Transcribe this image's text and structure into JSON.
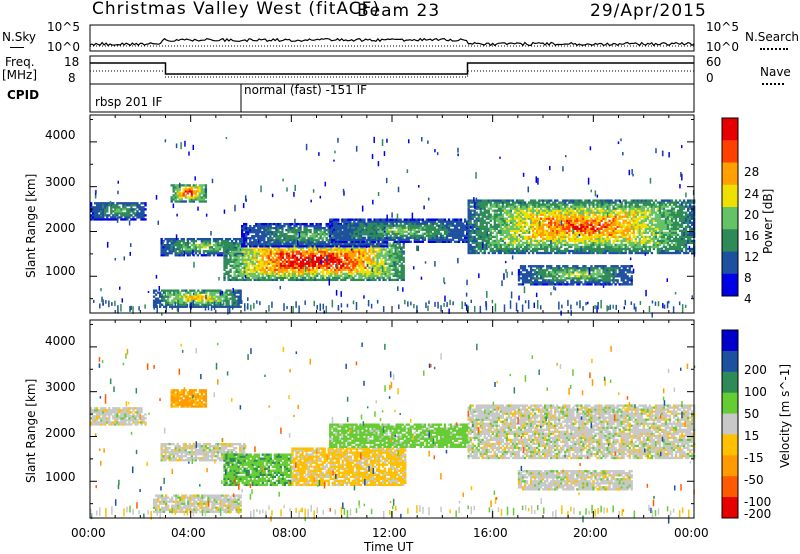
{
  "header": {
    "station": "Christmas Valley West (fitACF)",
    "beam": "Beam 23",
    "date": "29/Apr/2015"
  },
  "noise_panel": {
    "left_label": "N.Sky",
    "right_label": "N.Search",
    "left_ticks": [
      "10^5",
      "10^0"
    ],
    "right_ticks": [
      "10^5",
      "10^0"
    ]
  },
  "freq_panel": {
    "left_label_1": "Freq.",
    "left_label_2": "[MHz]",
    "right_label": "Nave",
    "left_ticks": [
      "18",
      "8"
    ],
    "right_ticks": [
      "60",
      "0"
    ]
  },
  "cpid_panel": {
    "label": "CPID",
    "segments": [
      {
        "start_hour": 0,
        "text": "rbsp 201 IF"
      },
      {
        "start_hour": 6,
        "text": "normal (fast) -151 IF"
      }
    ]
  },
  "x_axis": {
    "label": "Time UT",
    "ticks": [
      "00:00",
      "04:00",
      "08:00",
      "12:00",
      "16:00",
      "20:00",
      "00:00"
    ]
  },
  "colors": {
    "power": [
      "#0000e6",
      "#1e50a0",
      "#2e8b57",
      "#66c266",
      "#f0e000",
      "#ffa000",
      "#ff4000",
      "#e60000"
    ],
    "velocity": [
      "#e60000",
      "#ff5a00",
      "#ff9a00",
      "#ffc000",
      "#c8c8c8",
      "#66cc33",
      "#2e8b57",
      "#1e50a0",
      "#0000cc"
    ]
  },
  "chart_data": [
    {
      "type": "heatmap",
      "name": "power",
      "xlabel": "Time UT",
      "ylabel": "Slant Range [km]",
      "xlim": [
        0,
        24
      ],
      "ylim": [
        180,
        4600
      ],
      "yticks": [
        "1000",
        "2000",
        "3000",
        "4000"
      ],
      "colorbar": {
        "label": "Power [dB]",
        "ticks": [
          "28",
          "24",
          "20",
          "16",
          "12",
          "8",
          "4"
        ],
        "range": [
          0,
          32
        ]
      },
      "regions": [
        {
          "t0": 0.0,
          "t1": 2.2,
          "r0": 2250,
          "r1": 2650,
          "peak": 10
        },
        {
          "t0": 2.8,
          "t1": 6.1,
          "r0": 1450,
          "r1": 1850,
          "peak": 12
        },
        {
          "t0": 3.2,
          "t1": 4.6,
          "r0": 2650,
          "r1": 3050,
          "peak": 22
        },
        {
          "t0": 5.3,
          "t1": 12.5,
          "r0": 900,
          "r1": 1750,
          "peak": 25
        },
        {
          "t0": 6.0,
          "t1": 11.8,
          "r0": 1650,
          "r1": 2150,
          "peak": 10
        },
        {
          "t0": 9.5,
          "t1": 15.0,
          "r0": 1750,
          "r1": 2250,
          "peak": 11
        },
        {
          "t0": 15.0,
          "t1": 24.0,
          "r0": 1500,
          "r1": 2700,
          "peak": 20
        },
        {
          "t0": 17.0,
          "t1": 21.5,
          "r0": 800,
          "r1": 1250,
          "peak": 12
        },
        {
          "t0": 2.5,
          "t1": 6.0,
          "r0": 300,
          "r1": 700,
          "peak": 16
        }
      ]
    },
    {
      "type": "heatmap",
      "name": "velocity",
      "xlabel": "Time UT",
      "ylabel": "Slant Range [km]",
      "xlim": [
        0,
        24
      ],
      "ylim": [
        180,
        4600
      ],
      "yticks": [
        "1000",
        "2000",
        "3000",
        "4000"
      ],
      "colorbar": {
        "label": "Velocity [m s^-1]",
        "ticks": [
          "200",
          "100",
          "50",
          "15",
          "-15",
          "-50",
          "-100",
          "-200"
        ],
        "range": [
          -250,
          250
        ]
      },
      "regions": [
        {
          "t0": 0.0,
          "t1": 2.2,
          "r0": 2250,
          "r1": 2650,
          "vel": 0
        },
        {
          "t0": 2.8,
          "t1": 6.1,
          "r0": 1450,
          "r1": 1850,
          "vel": 0
        },
        {
          "t0": 3.2,
          "t1": 4.6,
          "r0": 2650,
          "r1": 3050,
          "vel": -60
        },
        {
          "t0": 5.3,
          "t1": 8.0,
          "r0": 900,
          "r1": 1600,
          "vel": 40
        },
        {
          "t0": 8.0,
          "t1": 12.5,
          "r0": 900,
          "r1": 1750,
          "vel": -25
        },
        {
          "t0": 9.5,
          "t1": 15.0,
          "r0": 1750,
          "r1": 2250,
          "vel": 30
        },
        {
          "t0": 15.0,
          "t1": 24.0,
          "r0": 1500,
          "r1": 2700,
          "vel": 0
        },
        {
          "t0": 17.0,
          "t1": 21.5,
          "r0": 800,
          "r1": 1250,
          "vel": 0
        },
        {
          "t0": 2.5,
          "t1": 6.0,
          "r0": 300,
          "r1": 700,
          "vel": 0
        }
      ]
    }
  ]
}
